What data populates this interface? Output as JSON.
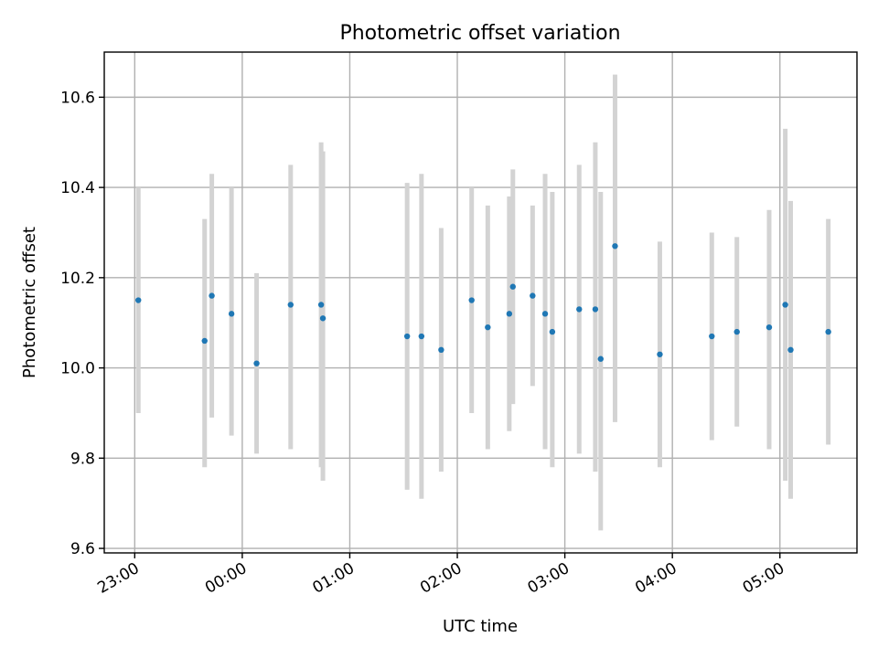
{
  "chart_data": {
    "type": "scatter",
    "title": "Photometric offset variation",
    "xlabel": "UTC time",
    "ylabel": "Photometric offset",
    "xlim": [
      "22:43",
      "05:43"
    ],
    "ylim": [
      9.59,
      10.7
    ],
    "grid": true,
    "x_ticks": [
      "23:00",
      "00:00",
      "01:00",
      "02:00",
      "03:00",
      "04:00",
      "05:00"
    ],
    "y_ticks": [
      "9.6",
      "9.8",
      "10.0",
      "10.2",
      "10.4",
      "10.6"
    ],
    "points": [
      {
        "x": "23:02",
        "y": 10.15,
        "yerr_low": 9.9,
        "yerr_high": 10.4
      },
      {
        "x": "23:39",
        "y": 10.06,
        "yerr_low": 9.78,
        "yerr_high": 10.33
      },
      {
        "x": "23:43",
        "y": 10.16,
        "yerr_low": 9.89,
        "yerr_high": 10.43
      },
      {
        "x": "23:54",
        "y": 10.12,
        "yerr_low": 9.85,
        "yerr_high": 10.4
      },
      {
        "x": "00:08",
        "y": 10.01,
        "yerr_low": 9.81,
        "yerr_high": 10.21
      },
      {
        "x": "00:27",
        "y": 10.14,
        "yerr_low": 9.82,
        "yerr_high": 10.45
      },
      {
        "x": "00:44",
        "y": 10.14,
        "yerr_low": 9.78,
        "yerr_high": 10.5
      },
      {
        "x": "00:45",
        "y": 10.11,
        "yerr_low": 9.75,
        "yerr_high": 10.48
      },
      {
        "x": "01:32",
        "y": 10.07,
        "yerr_low": 9.73,
        "yerr_high": 10.41
      },
      {
        "x": "01:40",
        "y": 10.07,
        "yerr_low": 9.71,
        "yerr_high": 10.43
      },
      {
        "x": "01:51",
        "y": 10.04,
        "yerr_low": 9.77,
        "yerr_high": 10.31
      },
      {
        "x": "02:08",
        "y": 10.15,
        "yerr_low": 9.9,
        "yerr_high": 10.4
      },
      {
        "x": "02:17",
        "y": 10.09,
        "yerr_low": 9.82,
        "yerr_high": 10.36
      },
      {
        "x": "02:29",
        "y": 10.12,
        "yerr_low": 9.86,
        "yerr_high": 10.38
      },
      {
        "x": "02:31",
        "y": 10.18,
        "yerr_low": 9.92,
        "yerr_high": 10.44
      },
      {
        "x": "02:42",
        "y": 10.16,
        "yerr_low": 9.96,
        "yerr_high": 10.36
      },
      {
        "x": "02:49",
        "y": 10.12,
        "yerr_low": 9.82,
        "yerr_high": 10.43
      },
      {
        "x": "02:53",
        "y": 10.08,
        "yerr_low": 9.78,
        "yerr_high": 10.39
      },
      {
        "x": "03:08",
        "y": 10.13,
        "yerr_low": 9.81,
        "yerr_high": 10.45
      },
      {
        "x": "03:17",
        "y": 10.13,
        "yerr_low": 9.77,
        "yerr_high": 10.5
      },
      {
        "x": "03:20",
        "y": 10.02,
        "yerr_low": 9.64,
        "yerr_high": 10.39
      },
      {
        "x": "03:28",
        "y": 10.27,
        "yerr_low": 9.88,
        "yerr_high": 10.65
      },
      {
        "x": "03:53",
        "y": 10.03,
        "yerr_low": 9.78,
        "yerr_high": 10.28
      },
      {
        "x": "04:22",
        "y": 10.07,
        "yerr_low": 9.84,
        "yerr_high": 10.3
      },
      {
        "x": "04:36",
        "y": 10.08,
        "yerr_low": 9.87,
        "yerr_high": 10.29
      },
      {
        "x": "04:54",
        "y": 10.09,
        "yerr_low": 9.82,
        "yerr_high": 10.35
      },
      {
        "x": "05:03",
        "y": 10.14,
        "yerr_low": 9.75,
        "yerr_high": 10.53
      },
      {
        "x": "05:06",
        "y": 10.04,
        "yerr_low": 9.71,
        "yerr_high": 10.37
      },
      {
        "x": "05:27",
        "y": 10.08,
        "yerr_low": 9.83,
        "yerr_high": 10.33
      }
    ],
    "colors": {
      "point": "#1f77b4",
      "errorbar": "#d3d3d3",
      "grid": "#b0b0b0"
    }
  }
}
